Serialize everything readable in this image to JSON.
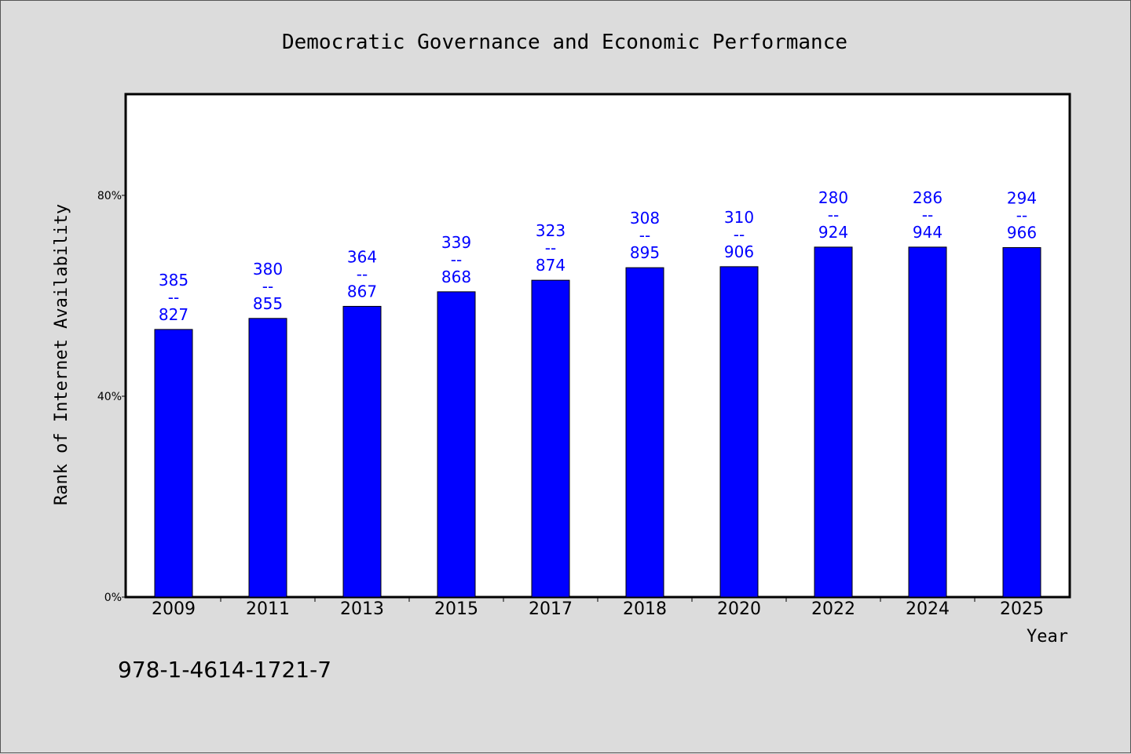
{
  "chart_data": {
    "type": "bar",
    "title": "Democratic Governance and Economic Performance",
    "xlabel": "Year",
    "ylabel": "Rank of Internet Availability",
    "categories": [
      "2009",
      "2011",
      "2013",
      "2015",
      "2017",
      "2018",
      "2020",
      "2022",
      "2024",
      "2025"
    ],
    "values": [
      53.3,
      55.5,
      57.9,
      60.8,
      63.1,
      65.6,
      65.8,
      69.7,
      69.7,
      69.6
    ],
    "data_labels": [
      [
        "385",
        "--",
        "827"
      ],
      [
        "380",
        "--",
        "855"
      ],
      [
        "364",
        "--",
        "867"
      ],
      [
        "339",
        "--",
        "868"
      ],
      [
        "323",
        "--",
        "874"
      ],
      [
        "308",
        "--",
        "895"
      ],
      [
        "310",
        "--",
        "906"
      ],
      [
        "280",
        "--",
        "924"
      ],
      [
        "286",
        "--",
        "944"
      ],
      [
        "294",
        "--",
        "966"
      ]
    ],
    "yticks": [
      0,
      40,
      80
    ],
    "ytick_labels": [
      "0%",
      "40%",
      "80%"
    ],
    "ylim": [
      0,
      100
    ],
    "bar_color": "#0000ff",
    "label_color": "#0000ff",
    "background": "#dcdcdc",
    "plot_background": "#ffffff",
    "grid": false,
    "legend": "none"
  },
  "footer": {
    "isbn": "978-1-4614-1721-7"
  }
}
